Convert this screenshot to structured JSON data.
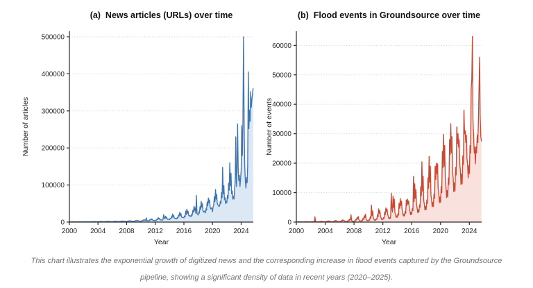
{
  "figure": {
    "caption_line1": "This chart illustrates the exponential growth of digitized news and the corresponding increase in flood events captured by the Groundsource",
    "caption_line2": "pipeline, showing a significant density of data in recent years (2020–2025)."
  },
  "chart_data": [
    {
      "type": "area",
      "title": "(a)  News articles (URLs) over time",
      "xlabel": "Year",
      "ylabel": "Number of articles",
      "x_unit": "year (monthly samples)",
      "x_start": 2000,
      "x_step_years": 0.0833333,
      "xlim": [
        2000,
        2025.7
      ],
      "ylim": [
        0,
        515000
      ],
      "xticks": [
        2000,
        2004,
        2008,
        2012,
        2016,
        2020,
        2024
      ],
      "yticks": [
        0,
        100000,
        200000,
        300000,
        400000,
        500000
      ],
      "grid": "horizontal-dotted",
      "legend": "none",
      "line_color": "#3e76b4",
      "fill_color": "#dce8f4",
      "values": [
        300,
        500,
        400,
        600,
        500,
        700,
        600,
        800,
        500,
        400,
        600,
        500,
        400,
        600,
        500,
        800,
        700,
        900,
        700,
        800,
        600,
        500,
        700,
        600,
        500,
        700,
        600,
        900,
        800,
        1100,
        900,
        1000,
        700,
        600,
        800,
        700,
        600,
        900,
        800,
        1200,
        1000,
        1400,
        1100,
        1300,
        900,
        800,
        1000,
        900,
        800,
        1100,
        1000,
        1500,
        1300,
        1700,
        1400,
        1600,
        1100,
        1000,
        1200,
        1100,
        900,
        1300,
        1200,
        1800,
        1500,
        2000,
        1600,
        1900,
        1300,
        1200,
        1400,
        1300,
        1100,
        1500,
        1400,
        2100,
        1800,
        2400,
        1900,
        2200,
        1500,
        1400,
        1600,
        1500,
        1300,
        1800,
        1600,
        2500,
        2100,
        2900,
        2300,
        2700,
        1800,
        1700,
        1900,
        1800,
        1500,
        2200,
        2000,
        3100,
        2600,
        4000,
        2900,
        3400,
        2200,
        2000,
        2300,
        2200,
        1900,
        2700,
        2400,
        3900,
        3200,
        4600,
        3600,
        4200,
        2800,
        2500,
        2900,
        2700,
        2400,
        3400,
        3000,
        5000,
        4200,
        7000,
        4800,
        6000,
        3800,
        11500,
        4500,
        3600,
        3000,
        4400,
        3900,
        6500,
        5400,
        9000,
        6300,
        7800,
        4800,
        4300,
        4700,
        4400,
        3900,
        5700,
        5000,
        8500,
        7000,
        12000,
        8200,
        10200,
        6300,
        5600,
        6100,
        5700,
        5100,
        7400,
        20000,
        11000,
        9100,
        16000,
        10700,
        13500,
        8200,
        7300,
        8000,
        7400,
        6600,
        9700,
        8500,
        14500,
        12000,
        22000,
        14000,
        17500,
        10700,
        9500,
        10400,
        9700,
        8600,
        12600,
        11000,
        19000,
        15500,
        26000,
        18000,
        23000,
        14000,
        12400,
        13500,
        12600,
        11200,
        16400,
        14400,
        30000,
        20000,
        35000,
        23500,
        29500,
        18200,
        16100,
        17600,
        16400,
        14600,
        21300,
        18700,
        32000,
        26000,
        43000,
        30500,
        38500,
        23600,
        72000,
        22900,
        21300,
        19000,
        27700,
        24300,
        42000,
        34000,
        56000,
        40000,
        50000,
        30700,
        27200,
        29800,
        27700,
        24700,
        36000,
        31600,
        54000,
        44000,
        65000,
        52000,
        60000,
        40000,
        35400,
        38700,
        36000,
        28000,
        42000,
        45000,
        68000,
        55000,
        88000,
        62000,
        75000,
        50000,
        46000,
        44000,
        42000,
        44000,
        56000,
        50000,
        80000,
        66000,
        148000,
        76000,
        98000,
        60000,
        66000,
        50000,
        56000,
        52000,
        72000,
        64000,
        105000,
        86000,
        160000,
        98000,
        132000,
        76000,
        84000,
        62000,
        70000,
        62000,
        88000,
        110000,
        230000,
        96000,
        135000,
        265000,
        150000,
        112000,
        126000,
        96000,
        116000,
        140000,
        260000,
        180000,
        266000,
        500000,
        262000,
        152000,
        112000,
        92000,
        120000,
        106000,
        152000,
        405000,
        252000,
        302000,
        272000,
        352000,
        310000,
        330000,
        345000,
        360000
      ]
    },
    {
      "type": "area",
      "title": "(b)  Flood events in Groundsource over time",
      "xlabel": "Year",
      "ylabel": "Number of events",
      "x_unit": "year (monthly samples)",
      "x_start": 2000,
      "x_step_years": 0.0833333,
      "xlim": [
        2000,
        2025.7
      ],
      "ylim": [
        0,
        64800
      ],
      "xticks": [
        2000,
        2004,
        2008,
        2012,
        2016,
        2020,
        2024
      ],
      "yticks": [
        0,
        10000,
        20000,
        30000,
        40000,
        50000,
        60000
      ],
      "grid": "horizontal-dotted",
      "legend": "none",
      "line_color": "#cb4a35",
      "fill_color": "#f9e2de",
      "values": [
        40,
        60,
        50,
        80,
        70,
        100,
        80,
        90,
        60,
        50,
        40,
        50,
        50,
        70,
        60,
        100,
        90,
        140,
        110,
        120,
        80,
        70,
        50,
        60,
        60,
        90,
        80,
        130,
        110,
        180,
        140,
        1800,
        120,
        90,
        70,
        80,
        70,
        110,
        90,
        160,
        140,
        260,
        190,
        220,
        150,
        110,
        80,
        100,
        90,
        140,
        120,
        260,
        210,
        420,
        300,
        360,
        230,
        160,
        110,
        130,
        110,
        180,
        150,
        380,
        290,
        560,
        400,
        480,
        300,
        220,
        140,
        170,
        140,
        240,
        200,
        520,
        380,
        760,
        540,
        640,
        400,
        280,
        180,
        220,
        180,
        320,
        260,
        700,
        500,
        1050,
        750,
        2500,
        550,
        380,
        240,
        300,
        240,
        430,
        350,
        950,
        700,
        1500,
        1050,
        1900,
        800,
        520,
        330,
        420,
        330,
        580,
        480,
        1300,
        950,
        2100,
        1500,
        2700,
        1100,
        720,
        460,
        580,
        450,
        800,
        650,
        1800,
        1300,
        5800,
        2100,
        3800,
        1500,
        1000,
        640,
        800,
        620,
        1100,
        900,
        2500,
        1800,
        4500,
        2900,
        3900,
        2100,
        1400,
        880,
        1100,
        850,
        1500,
        1250,
        3400,
        2500,
        4800,
        3600,
        4400,
        2600,
        1900,
        1200,
        1500,
        1150,
        2100,
        9800,
        4700,
        3400,
        8800,
        4900,
        7800,
        3300,
        2600,
        1650,
        2100,
        1600,
        2800,
        2350,
        6400,
        4700,
        8000,
        5600,
        7100,
        4200,
        3200,
        2100,
        2700,
        2000,
        3600,
        3000,
        7500,
        5600,
        7800,
        6200,
        7200,
        4700,
        3800,
        2500,
        3300,
        2600,
        4600,
        3900,
        15500,
        7000,
        13000,
        8000,
        11000,
        5900,
        4800,
        3200,
        4200,
        3300,
        5900,
        5000,
        12000,
        9000,
        20500,
        10500,
        15500,
        7400,
        6100,
        4100,
        5300,
        4200,
        7500,
        6300,
        15000,
        11500,
        22300,
        13500,
        19000,
        9300,
        7700,
        5200,
        6700,
        5300,
        9500,
        8000,
        19000,
        14500,
        20000,
        16500,
        19800,
        11500,
        9700,
        6600,
        8500,
        6700,
        12000,
        10000,
        24000,
        18500,
        29800,
        19000,
        26000,
        14000,
        12000,
        8300,
        10700,
        8500,
        15000,
        12800,
        28000,
        23000,
        33400,
        23500,
        29000,
        17000,
        14800,
        10300,
        13300,
        10500,
        18500,
        16000,
        32300,
        26500,
        30000,
        25500,
        28000,
        19500,
        17500,
        12700,
        16300,
        13000,
        22500,
        19500,
        38000,
        29900,
        31000,
        27000,
        29500,
        21500,
        19800,
        15000,
        19200,
        16500,
        26000,
        23500,
        45300,
        48500,
        63000,
        34500,
        29500,
        23500,
        25500,
        19800,
        25500,
        23500,
        29500,
        27000,
        34000,
        45000,
        56000,
        36000,
        29000,
        27500
      ]
    }
  ]
}
